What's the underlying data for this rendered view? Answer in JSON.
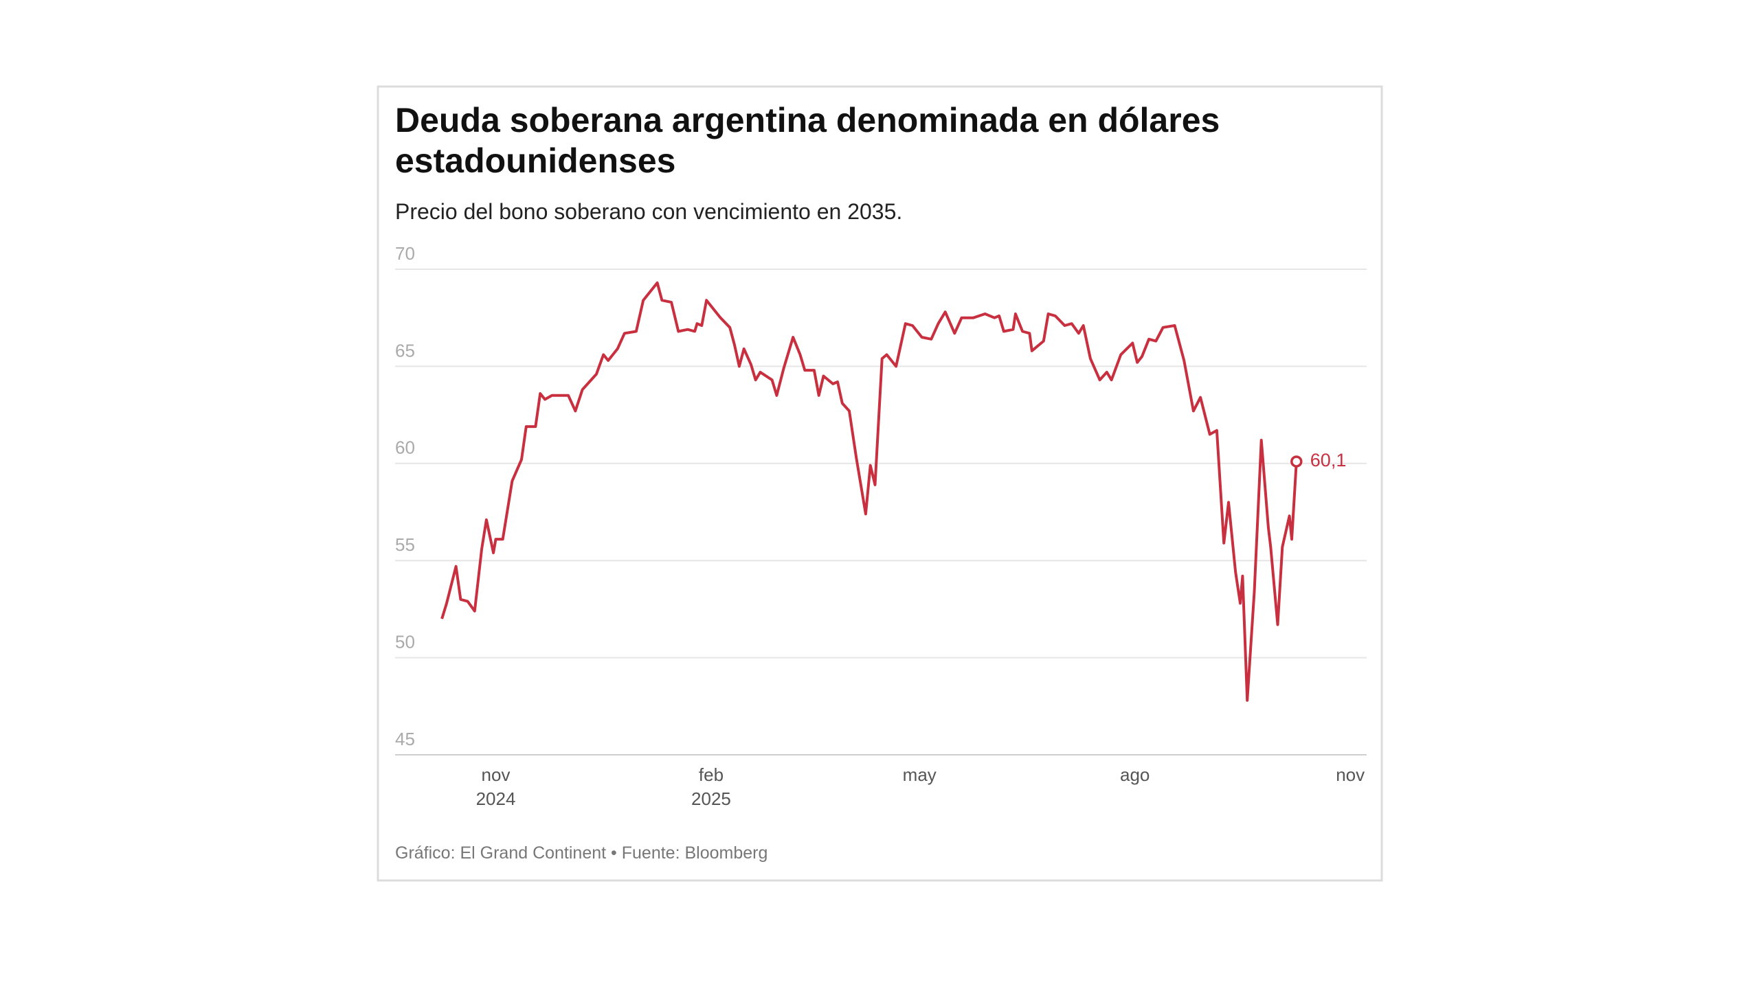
{
  "chart_data": {
    "type": "line",
    "title": "Deuda soberana argentina denominada en dólares estadounidenses",
    "subtitle": "Precio del bono soberano con vencimiento en 2035.",
    "source": "Gráfico: El Grand Continent • Fuente: Bloomberg",
    "x": [
      "2024-10-09",
      "2024-10-11",
      "2024-10-15",
      "2024-10-17",
      "2024-10-20",
      "2024-10-23",
      "2024-10-26",
      "2024-10-28",
      "2024-10-31",
      "2024-11-01",
      "2024-11-04",
      "2024-11-08",
      "2024-11-12",
      "2024-11-14",
      "2024-11-18",
      "2024-11-20",
      "2024-11-22",
      "2024-11-25",
      "2024-12-02",
      "2024-12-05",
      "2024-12-08",
      "2024-12-11",
      "2024-12-14",
      "2024-12-17",
      "2024-12-19",
      "2024-12-23",
      "2024-12-26",
      "2024-12-31",
      "2025-01-03",
      "2025-01-07",
      "2025-01-09",
      "2025-01-11",
      "2025-01-15",
      "2025-01-18",
      "2025-01-22",
      "2025-01-25",
      "2025-01-26",
      "2025-01-28",
      "2025-01-30",
      "2025-02-05",
      "2025-02-09",
      "2025-02-11",
      "2025-02-13",
      "2025-02-15",
      "2025-02-18",
      "2025-02-20",
      "2025-02-22",
      "2025-02-27",
      "2025-03-01",
      "2025-03-04",
      "2025-03-08",
      "2025-03-11",
      "2025-03-13",
      "2025-03-17",
      "2025-03-19",
      "2025-03-21",
      "2025-03-25",
      "2025-03-27",
      "2025-03-29",
      "2025-04-01",
      "2025-04-04",
      "2025-04-08",
      "2025-04-10",
      "2025-04-12",
      "2025-04-15",
      "2025-04-17",
      "2025-04-21",
      "2025-04-25",
      "2025-04-28",
      "2025-05-02",
      "2025-05-06",
      "2025-05-09",
      "2025-05-12",
      "2025-05-16",
      "2025-05-19",
      "2025-05-24",
      "2025-05-29",
      "2025-06-02",
      "2025-06-04",
      "2025-06-06",
      "2025-06-10",
      "2025-06-11",
      "2025-06-14",
      "2025-06-17",
      "2025-06-18",
      "2025-06-23",
      "2025-06-25",
      "2025-06-28",
      "2025-07-02",
      "2025-07-05",
      "2025-07-08",
      "2025-07-10",
      "2025-07-13",
      "2025-07-17",
      "2025-07-20",
      "2025-07-22",
      "2025-07-26",
      "2025-07-31",
      "2025-08-02",
      "2025-08-04",
      "2025-08-07",
      "2025-08-10",
      "2025-08-13",
      "2025-08-18",
      "2025-08-22",
      "2025-08-26",
      "2025-08-29",
      "2025-09-02",
      "2025-09-05",
      "2025-09-08",
      "2025-09-10",
      "2025-09-13",
      "2025-09-15",
      "2025-09-16",
      "2025-09-18",
      "2025-09-21",
      "2025-09-24",
      "2025-09-27",
      "2025-09-28",
      "2025-10-01",
      "2025-10-03",
      "2025-10-06",
      "2025-10-07",
      "2025-10-09"
    ],
    "series": [
      {
        "color": "#c8303f",
        "values": [
          52.0,
          52.8,
          54.7,
          53.0,
          52.9,
          52.4,
          55.6,
          57.1,
          55.4,
          56.1,
          56.1,
          59.1,
          60.2,
          61.9,
          61.9,
          63.6,
          63.3,
          63.5,
          63.5,
          62.7,
          63.8,
          64.2,
          64.6,
          65.6,
          65.3,
          65.9,
          66.7,
          66.8,
          68.4,
          69.0,
          69.3,
          68.4,
          68.3,
          66.8,
          66.9,
          66.8,
          67.2,
          67.1,
          68.4,
          67.5,
          67.0,
          66.1,
          65.0,
          65.9,
          65.1,
          64.3,
          64.7,
          64.3,
          63.5,
          64.9,
          66.5,
          65.6,
          64.8,
          64.8,
          63.5,
          64.5,
          64.1,
          64.2,
          63.1,
          62.7,
          60.3,
          57.4,
          59.9,
          58.9,
          65.4,
          65.6,
          65.0,
          67.2,
          67.1,
          66.5,
          66.4,
          67.2,
          67.8,
          66.7,
          67.5,
          67.5,
          67.7,
          67.5,
          67.6,
          66.8,
          66.9,
          67.7,
          66.8,
          66.7,
          65.8,
          66.3,
          67.7,
          67.6,
          67.1,
          67.2,
          66.7,
          67.1,
          65.4,
          64.3,
          64.7,
          64.3,
          65.6,
          66.2,
          65.2,
          65.5,
          66.4,
          66.3,
          67.0,
          67.1,
          65.3,
          62.7,
          63.4,
          61.5,
          61.7,
          55.9,
          58.0,
          54.4,
          52.8,
          54.2,
          47.8,
          53.4,
          61.2,
          56.7,
          55.7,
          51.7,
          55.7,
          57.3,
          56.1,
          60.1
        ]
      }
    ],
    "annotations": [
      {
        "x": "2025-10-09",
        "y": 60.1,
        "label": "60,1"
      }
    ],
    "xlim": [
      "2024-09-19",
      "2025-11-08"
    ],
    "xticks": [
      {
        "value": "2024-11-01",
        "label": [
          "nov",
          "2024"
        ]
      },
      {
        "value": "2025-02-01",
        "label": [
          "feb",
          "2025"
        ]
      },
      {
        "value": "2025-05-01",
        "label": [
          "may"
        ]
      },
      {
        "value": "2025-08-01",
        "label": [
          "ago"
        ]
      },
      {
        "value": "2025-11-01",
        "label": [
          "nov"
        ]
      }
    ],
    "ylim": [
      45,
      70
    ],
    "yticks": [
      45,
      50,
      55,
      60,
      65,
      70
    ],
    "grid": true
  }
}
